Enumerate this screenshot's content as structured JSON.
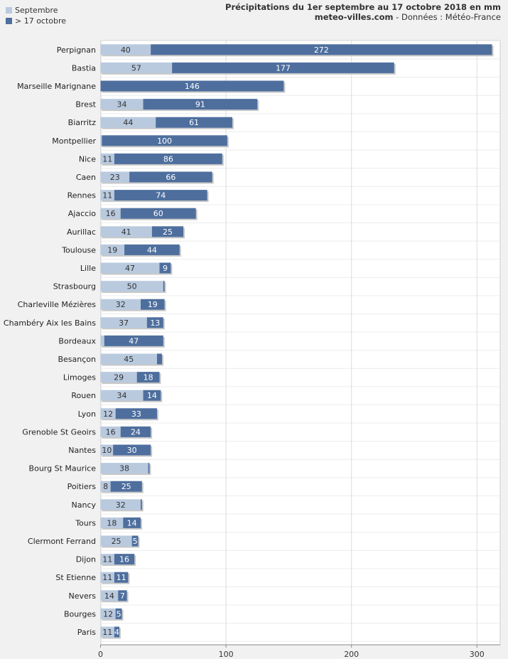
{
  "header": {
    "title": "Précipitations du 1er septembre au 17 octobre 2018 en mm",
    "site": "meteo-villes.com",
    "source": " - Données : Météo-France"
  },
  "colors": {
    "septembre": "#b9cadf",
    "octobre": "#4e6f9e",
    "background": "#f1f1f1",
    "plot_bg": "#ffffff",
    "grid": "#dcdcdc"
  },
  "chart_data": {
    "type": "bar",
    "orientation": "horizontal",
    "stacked": true,
    "title": "Précipitations du 1er septembre au 17 octobre 2018 en mm",
    "xlabel": "",
    "ylabel": "",
    "xlim": [
      0,
      315
    ],
    "xticks": [
      0,
      100,
      200,
      300
    ],
    "grid": true,
    "legend_position": "top-left",
    "categories": [
      "Perpignan",
      "Bastia",
      "Marseille Marignane",
      "Brest",
      "Biarritz",
      "Montpellier",
      "Nice",
      "Caen",
      "Rennes",
      "Ajaccio",
      "Aurillac",
      "Toulouse",
      "Lille",
      "Strasbourg",
      "Charleville Mézières",
      "Chambéry Aix les Bains",
      "Bordeaux",
      "Besançon",
      "Limoges",
      "Rouen",
      "Lyon",
      "Grenoble St Geoirs",
      "Nantes",
      "Bourg St Maurice",
      "Poitiers",
      "Nancy",
      "Tours",
      "Clermont Ferrand",
      "Dijon",
      "St Etienne",
      "Nevers",
      "Bourges",
      "Paris"
    ],
    "series": [
      {
        "name": "Septembre",
        "values": [
          40,
          57,
          0,
          34,
          44,
          1,
          11,
          23,
          11,
          16,
          41,
          19,
          47,
          50,
          32,
          37,
          3,
          45,
          29,
          34,
          12,
          16,
          10,
          38,
          8,
          32,
          18,
          25,
          11,
          11,
          14,
          12,
          11
        ],
        "labels": [
          "40",
          "57",
          "",
          "34",
          "44",
          "",
          "11",
          "23",
          "11",
          "16",
          "41",
          "19",
          "47",
          "50",
          "32",
          "37",
          "",
          "45",
          "29",
          "34",
          "12",
          "16",
          "10",
          "38",
          "8",
          "32",
          "18",
          "25",
          "11",
          "11",
          "14",
          "12",
          "11"
        ]
      },
      {
        "name": "> 17 octobre",
        "values": [
          272,
          177,
          146,
          91,
          61,
          100,
          86,
          66,
          74,
          60,
          25,
          44,
          9,
          1,
          19,
          13,
          47,
          4,
          18,
          14,
          33,
          24,
          30,
          1,
          25,
          1,
          14,
          5,
          16,
          11,
          7,
          5,
          4
        ],
        "labels": [
          "272",
          "177",
          "146",
          "91",
          "61",
          "100",
          "86",
          "66",
          "74",
          "60",
          "25",
          "44",
          "9",
          "",
          "19",
          "13",
          "47",
          "",
          "18",
          "14",
          "33",
          "24",
          "30",
          "",
          "25",
          "",
          "14",
          "5",
          "16",
          "11",
          "7",
          "5",
          "4"
        ]
      }
    ]
  }
}
